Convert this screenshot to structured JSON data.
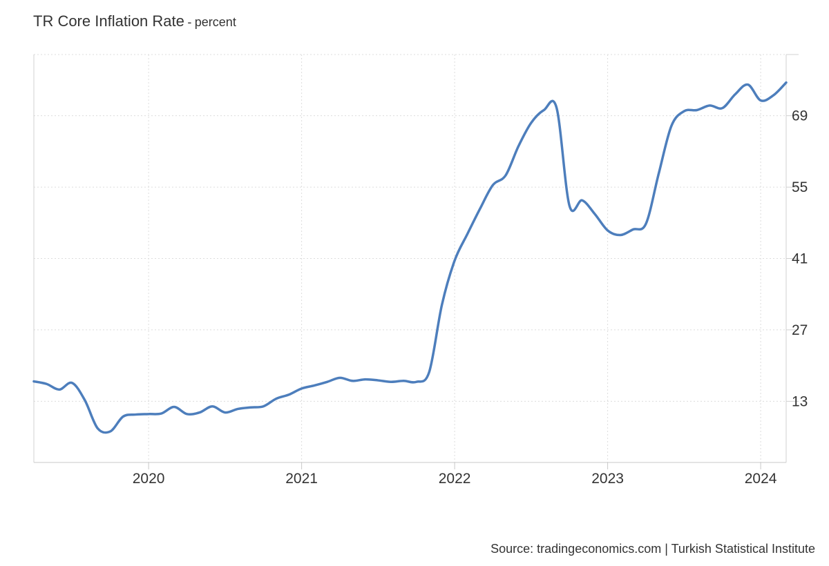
{
  "title": {
    "main": "TR Core Inflation Rate",
    "separator": "-",
    "unit": "percent"
  },
  "source": "Source: tradingeconomics.com | Turkish Statistical Institute",
  "chart_data": {
    "type": "line",
    "title": "TR Core Inflation Rate",
    "subtitle": "percent",
    "xlabel": "",
    "ylabel": "",
    "x_ticks": [
      "2020",
      "2021",
      "2022",
      "2023",
      "2024"
    ],
    "y_ticks": [
      13,
      27,
      41,
      55,
      69
    ],
    "xlim": [
      "2019-04-01",
      "2024-03-01"
    ],
    "ylim": [
      1,
      81
    ],
    "y_axis_side": "right",
    "grid": true,
    "legend": "none",
    "line_color": "#4d7ebc",
    "series": [
      {
        "x": [
          "2019-04",
          "2019-05",
          "2019-06",
          "2019-07",
          "2019-08",
          "2019-09",
          "2019-10",
          "2019-11",
          "2019-12",
          "2020-01",
          "2020-02",
          "2020-03",
          "2020-04",
          "2020-05",
          "2020-06",
          "2020-07",
          "2020-08",
          "2020-09",
          "2020-10",
          "2020-11",
          "2020-12",
          "2021-01",
          "2021-02",
          "2021-03",
          "2021-04",
          "2021-05",
          "2021-06",
          "2021-07",
          "2021-08",
          "2021-09",
          "2021-10",
          "2021-11",
          "2021-12",
          "2022-01",
          "2022-02",
          "2022-03",
          "2022-04",
          "2022-05",
          "2022-06",
          "2022-07",
          "2022-08",
          "2022-09",
          "2022-10",
          "2022-11",
          "2022-12",
          "2023-01",
          "2023-02",
          "2023-03",
          "2023-04",
          "2023-05",
          "2023-06",
          "2023-07",
          "2023-08",
          "2023-09",
          "2023-10",
          "2023-11",
          "2023-12",
          "2024-01",
          "2024-02",
          "2024-03"
        ],
        "y": [
          16.9,
          16.4,
          15.3,
          16.6,
          13.2,
          7.7,
          7.1,
          10.0,
          10.4,
          10.5,
          10.6,
          11.9,
          10.5,
          10.8,
          12.0,
          10.8,
          11.5,
          11.8,
          12.0,
          13.5,
          14.3,
          15.5,
          16.1,
          16.8,
          17.6,
          17.0,
          17.3,
          17.1,
          16.8,
          17.0,
          16.8,
          18.7,
          31.9,
          40.6,
          45.8,
          50.8,
          55.4,
          57.3,
          63.0,
          67.6,
          70.1,
          70.5,
          51.4,
          52.4,
          49.7,
          46.5,
          45.6,
          46.7,
          47.8,
          57.6,
          67.0,
          69.9,
          70.1,
          71.0,
          70.5,
          73.2,
          75.1,
          72.0,
          73.0,
          75.5
        ]
      }
    ]
  }
}
